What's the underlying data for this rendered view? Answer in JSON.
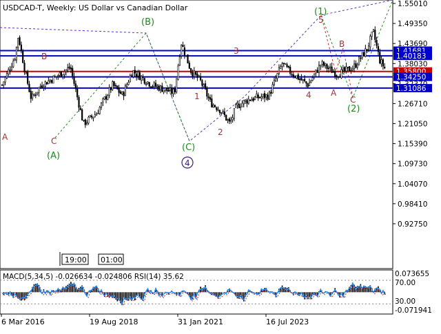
{
  "header": {
    "symbol": "USDCAD-T",
    "timeframe": "Weekly",
    "description": "US Dollar vs Canadian Dollar",
    "title": "USDCAD-T, Weekly:  US Dollar vs Canadian Dollar"
  },
  "colors": {
    "background": "#ffffff",
    "candle": "#000000",
    "level_blue": "#0000c8",
    "level_red": "#c80000",
    "wave_green": "#1a8c1a",
    "wave_brown": "#a83232",
    "wave_purple": "#3a1a8c",
    "guide_dotted_purple": "#5a32b4",
    "guide_dotted_green": "#228b22",
    "guide_dotted_red": "#c83232",
    "macd_hist": "#000000",
    "macd_signal": "#b03030",
    "rsi_line": "#1e90ff"
  },
  "main_axis": {
    "ticks": [
      "1.55010",
      "1.49350",
      "1.43690",
      "1.38030",
      "1.32370",
      "1.26710",
      "1.21050",
      "1.15390",
      "1.09730",
      "1.04070",
      "0.98410",
      "0.92750"
    ],
    "ylim": [
      0.8709,
      1.5501
    ]
  },
  "price_levels": [
    {
      "label": "1.41681",
      "value": 1.41681,
      "color": "blue"
    },
    {
      "label": "1.40183",
      "value": 1.40183,
      "color": "blue"
    },
    {
      "label": "1.35800",
      "value": 1.358,
      "color": "red"
    },
    {
      "label": "1.34250",
      "value": 1.3425,
      "color": "blue"
    },
    {
      "label": "1.31086",
      "value": 1.31086,
      "color": "blue"
    }
  ],
  "time_labels": [
    "19:00",
    "01:00"
  ],
  "x_axis": {
    "labels": [
      "6 Mar 2016",
      "19 Aug 2018",
      "31 Jan 2021",
      "16 Jul 2023"
    ]
  },
  "wave_labels": [
    {
      "text": "A",
      "color": "brown"
    },
    {
      "text": "B",
      "color": "brown"
    },
    {
      "text": "C",
      "color": "brown"
    },
    {
      "text": "(A)",
      "color": "green"
    },
    {
      "text": "(B)",
      "color": "green"
    },
    {
      "text": "(C)",
      "color": "green"
    },
    {
      "text": "4",
      "color": "purple",
      "circled": true
    },
    {
      "text": "1",
      "color": "brown"
    },
    {
      "text": "2",
      "color": "brown"
    },
    {
      "text": "3",
      "color": "brown"
    },
    {
      "text": "4",
      "color": "brown"
    },
    {
      "text": "5",
      "color": "brown"
    },
    {
      "text": "(1)",
      "color": "green"
    },
    {
      "text": "A",
      "color": "brown"
    },
    {
      "text": "B",
      "color": "brown"
    },
    {
      "text": "C",
      "color": "brown"
    },
    {
      "text": "(2)",
      "color": "green"
    }
  ],
  "indicator": {
    "label": "MACD(5,34,5) -0.026634 -0.024806 RSI(14) 35.62",
    "ticks": [
      "0.073655",
      "70.00",
      "30.00",
      "-0.071941"
    ]
  },
  "chart_data": {
    "type": "line",
    "title": "USDCAD-T, Weekly:  US Dollar vs Canadian Dollar",
    "xlabel": "",
    "ylabel": "",
    "ylim": [
      0.8709,
      1.5501
    ],
    "grid": false,
    "x": [
      "2015-08",
      "2015-12",
      "2016-01",
      "2016-03",
      "2016-05",
      "2016-08",
      "2016-12",
      "2017-05",
      "2017-09",
      "2018-01",
      "2018-06",
      "2018-09",
      "2018-12",
      "2019-06",
      "2019-12",
      "2020-01",
      "2020-03",
      "2020-06",
      "2020-09",
      "2020-12",
      "2021-03",
      "2021-06",
      "2021-08",
      "2021-12",
      "2022-06",
      "2022-10",
      "2022-12",
      "2023-06",
      "2023-10",
      "2024-03",
      "2024-08",
      "2024-12",
      "2025-02",
      "2025-04",
      "2025-06"
    ],
    "series": [
      {
        "values": [
          1.32,
          1.4,
          1.46,
          1.36,
          1.28,
          1.32,
          1.34,
          1.37,
          1.21,
          1.24,
          1.32,
          1.29,
          1.36,
          1.32,
          1.3,
          1.3,
          1.44,
          1.36,
          1.33,
          1.27,
          1.25,
          1.21,
          1.26,
          1.28,
          1.29,
          1.38,
          1.36,
          1.32,
          1.38,
          1.35,
          1.37,
          1.42,
          1.47,
          1.39,
          1.36
        ]
      }
    ],
    "macd_rsi_panel": {
      "macd_value": -0.026634,
      "signal_value": -0.024806,
      "rsi_value": 35.62,
      "levels": [
        70,
        30
      ]
    }
  }
}
